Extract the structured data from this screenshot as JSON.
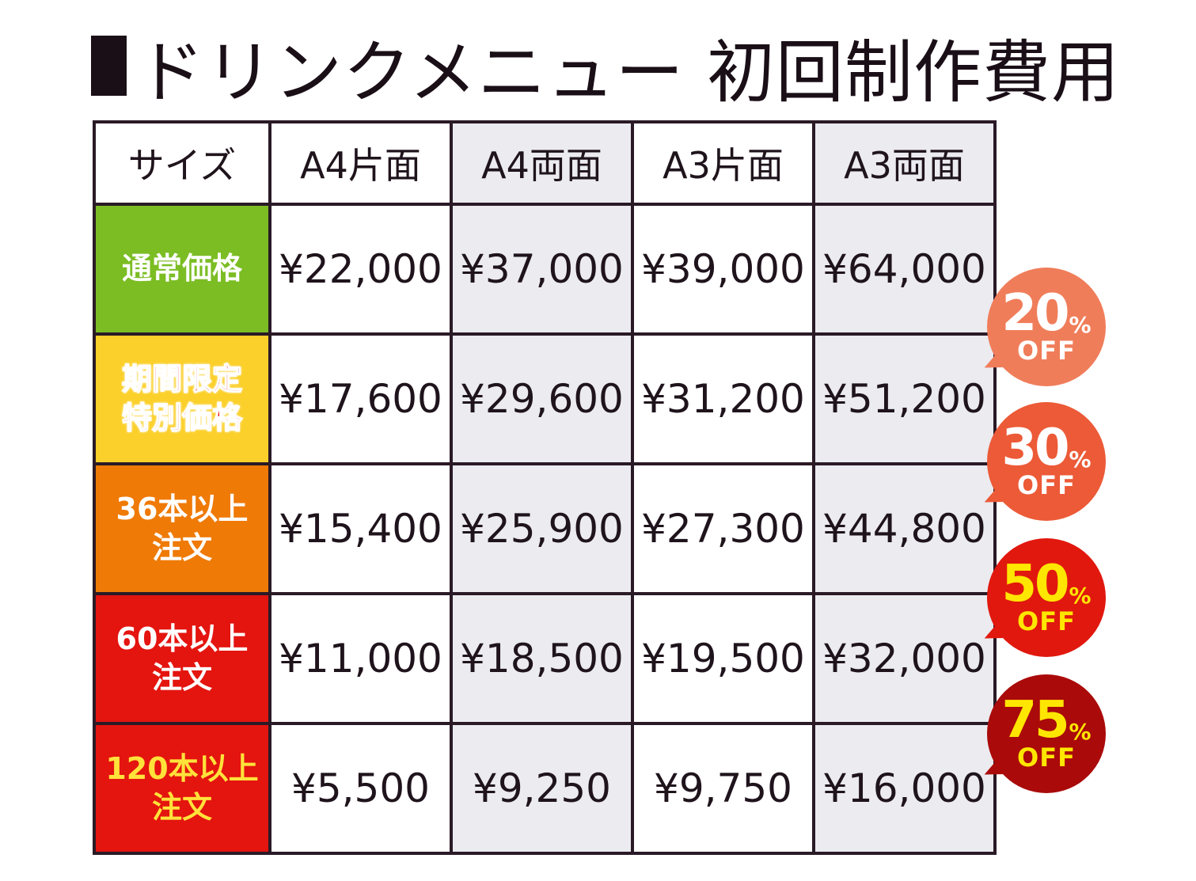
{
  "title": "ドリンクメニュー 初回制作費用",
  "table": {
    "header": [
      "サイズ",
      "A4片面",
      "A4両面",
      "A3片面",
      "A3両面"
    ],
    "rows": [
      {
        "label": [
          "通常価格"
        ],
        "label_color": "#7bbd23",
        "prices": [
          "¥22,000",
          "¥37,000",
          "¥39,000",
          "¥64,000"
        ]
      },
      {
        "label": [
          "期間限定",
          "特別価格"
        ],
        "label_color": "#fcd02a",
        "prices": [
          "¥17,600",
          "¥29,600",
          "¥31,200",
          "¥51,200"
        ]
      },
      {
        "label": [
          "36本以上",
          "注文"
        ],
        "label_color": "#ef7a06",
        "prices": [
          "¥15,400",
          "¥25,900",
          "¥27,300",
          "¥44,800"
        ]
      },
      {
        "label": [
          "60本以上",
          "注文"
        ],
        "label_color": "#e4140f",
        "prices": [
          "¥11,000",
          "¥18,500",
          "¥19,500",
          "¥32,000"
        ]
      },
      {
        "label": [
          "120本以上",
          "注文"
        ],
        "label_color": "#e4140f",
        "prices": [
          "¥5,500",
          "¥9,250",
          "¥9,750",
          "¥16,000"
        ]
      }
    ]
  },
  "badges": [
    {
      "num": "20",
      "pct": "%",
      "off": "OFF",
      "color": "#f07d5a"
    },
    {
      "num": "30",
      "pct": "%",
      "off": "OFF",
      "color": "#ec5a37"
    },
    {
      "num": "50",
      "pct": "%",
      "off": "OFF",
      "color": "#e1180e"
    },
    {
      "num": "75",
      "pct": "%",
      "off": "OFF",
      "color": "#aa0a0a"
    }
  ]
}
